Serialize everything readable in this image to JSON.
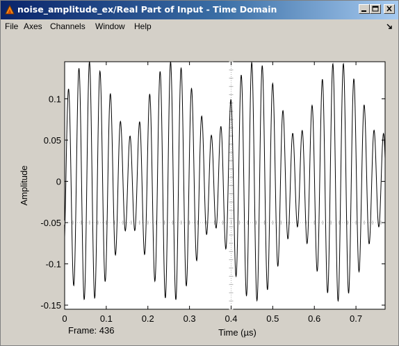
{
  "window": {
    "title": "noise_amplitude_ex/Real Part  of Input -  Time Domain",
    "title_gradient_start": "#0a246a",
    "title_gradient_end": "#a6caf0"
  },
  "menu": {
    "items": [
      "File",
      "Axes",
      "Channels",
      "Window",
      "Help"
    ]
  },
  "icons": {
    "app": "scope-app-icon",
    "minimize": "minimize-icon",
    "maximize": "maximize-icon",
    "close": "close-icon",
    "menu_arrow": "dock-arrow-icon"
  },
  "frame_label": "Frame: 436",
  "chart_data": {
    "type": "line",
    "title": "",
    "xlabel": "Time (µs)",
    "ylabel": "Amplitude",
    "xlim": [
      0,
      0.77
    ],
    "ylim": [
      -0.155,
      0.145
    ],
    "xticks": [
      "0",
      "0.1",
      "0.2",
      "0.3",
      "0.4",
      "0.5",
      "0.6",
      "0.7"
    ],
    "xtick_values": [
      0,
      0.1,
      0.2,
      0.3,
      0.4,
      0.5,
      0.6,
      0.7
    ],
    "yticks": [
      "0.1",
      "0.05",
      "0",
      "-0.05",
      "-0.1",
      "-0.15"
    ],
    "ytick_values": [
      0.1,
      0.05,
      0,
      -0.05,
      -0.1,
      -0.15
    ],
    "grid": "dotted-center-crosshair",
    "line_color": "#000000",
    "background": "#ffffff",
    "signal": {
      "description": "sum of two sinusoids producing beating pattern",
      "components": [
        {
          "amplitude": 0.1,
          "frequency_per_us": 41.0
        },
        {
          "amplitude": 0.045,
          "frequency_per_us": 36.0
        }
      ],
      "x_start": 0,
      "x_end": 0.77
    }
  }
}
